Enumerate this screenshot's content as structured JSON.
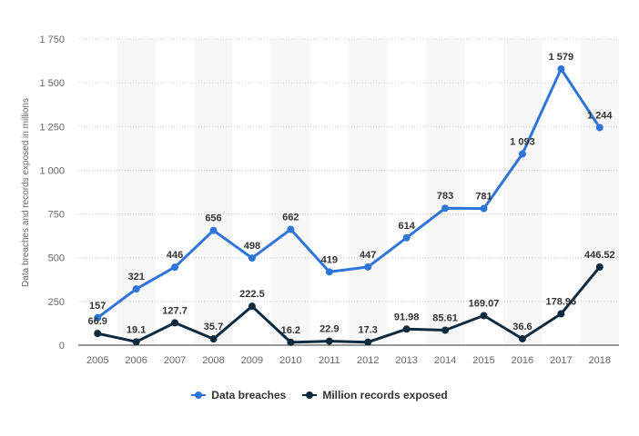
{
  "chart_data": {
    "type": "line",
    "x": [
      "2005",
      "2006",
      "2007",
      "2008",
      "2009",
      "2010",
      "2011",
      "2012",
      "2013",
      "2014",
      "2015",
      "2016",
      "2017",
      "2018"
    ],
    "series": [
      {
        "name": "Data breaches",
        "color": "#2f74d9",
        "values": [
          157,
          321,
          446,
          656,
          498,
          662,
          419,
          447,
          614,
          783,
          781,
          1093,
          1579,
          1244
        ],
        "labels": [
          "157",
          "321",
          "446",
          "656",
          "498",
          "662",
          "419",
          "447",
          "614",
          "783",
          "781",
          "1 093",
          "1 579",
          "1 244"
        ]
      },
      {
        "name": "Million records exposed",
        "color": "#0e2a3f",
        "values": [
          66.9,
          19.1,
          127.7,
          35.7,
          222.5,
          16.2,
          22.9,
          17.3,
          91.98,
          85.61,
          169.07,
          36.6,
          178.96,
          446.52
        ],
        "labels": [
          "66.9",
          "19.1",
          "127.7",
          "35.7",
          "222.5",
          "16.2",
          "22.9",
          "17.3",
          "91.98",
          "85.61",
          "169.07",
          "36.6",
          "178.96",
          "446.52"
        ]
      }
    ],
    "ylabel": "Data breaches and records exposed in millions",
    "ylim": [
      0,
      1750
    ],
    "yticks": [
      0,
      250,
      500,
      750,
      1000,
      1250,
      1500,
      1750
    ],
    "ytick_labels": [
      "0",
      "250",
      "500",
      "750",
      "1 000",
      "1 250",
      "1 500",
      "1 750"
    ],
    "grid": true,
    "legend_position": "bottom"
  }
}
